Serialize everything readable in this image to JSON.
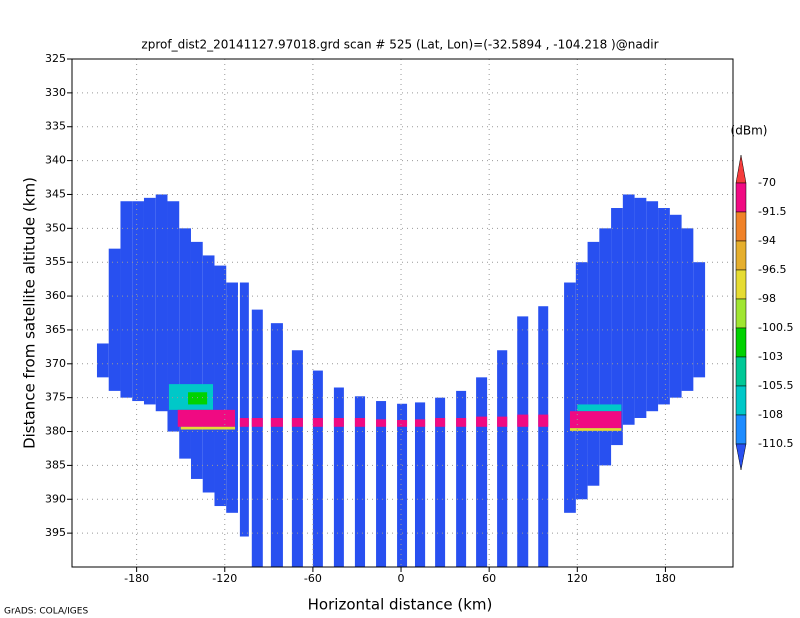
{
  "chart_data": {
    "type": "heatmap",
    "title": "zprof_dist2_20141127.97018.grd  scan # 525  (Lat, Lon)=(-32.5894 , -104.218 )@nadir",
    "x_label": "Horizontal distance (km)",
    "y_label": "Distance from satellite altitude (km)",
    "colorbar_label": "(dBm)",
    "footer": "GrADS: COLA/IGES",
    "xlim": [
      -224,
      226
    ],
    "ylim": [
      325,
      400
    ],
    "y_inverted": true,
    "grid": true,
    "xticks": [
      -180,
      -120,
      -60,
      0,
      60,
      120,
      180
    ],
    "yticks": [
      325,
      330,
      335,
      340,
      345,
      350,
      355,
      360,
      365,
      370,
      375,
      380,
      385,
      390,
      395
    ],
    "levels": [
      -70,
      -91.5,
      -94,
      -96.5,
      -98,
      -100.5,
      -103,
      -105.5,
      -108,
      -110.5
    ],
    "colors": [
      "#f53c3c",
      "#f00a82",
      "#f08228",
      "#e6af2d",
      "#e6dc32",
      "#a0e632",
      "#00d200",
      "#00c896",
      "#00c8c8",
      "#1e8cff",
      "#2850f0"
    ],
    "cells": [
      [
        -207,
        -199,
        367,
        372,
        -112
      ],
      [
        -199,
        -191,
        353,
        374,
        -112
      ],
      [
        -191,
        -183,
        346,
        375,
        -112
      ],
      [
        -183,
        -175,
        346,
        375.5,
        -112
      ],
      [
        -175,
        -167,
        345.5,
        376,
        -112
      ],
      [
        -167,
        -159,
        345,
        377,
        -112
      ],
      [
        -159,
        -151,
        346,
        380,
        -112
      ],
      [
        -151,
        -143,
        350,
        384,
        -112
      ],
      [
        -143,
        -135,
        352,
        387,
        -112
      ],
      [
        -135,
        -127,
        354,
        389,
        -112
      ],
      [
        -127,
        -119,
        355.5,
        391,
        -112
      ],
      [
        -119,
        -111,
        358,
        392,
        -112
      ],
      [
        -109.7,
        -103.6,
        358,
        395.5,
        -112
      ],
      [
        -101.6,
        -94.1,
        362,
        400,
        -112
      ],
      [
        -88.6,
        -80.4,
        364,
        400,
        -112
      ],
      [
        -74.3,
        -66.8,
        368,
        400,
        -112
      ],
      [
        -60,
        -53.2,
        371,
        400,
        -112
      ],
      [
        -45.7,
        -38.9,
        373.5,
        400,
        -112
      ],
      [
        -31.4,
        -24.5,
        374.8,
        400,
        -112
      ],
      [
        -17,
        -10.2,
        375.5,
        400,
        -112
      ],
      [
        -2.7,
        4.1,
        375.9,
        400,
        -112
      ],
      [
        9.5,
        16.4,
        375.7,
        400,
        -112
      ],
      [
        23.2,
        30,
        375,
        400,
        -112
      ],
      [
        37.5,
        44.3,
        374,
        400,
        -112
      ],
      [
        51.1,
        58.6,
        372,
        400,
        -112
      ],
      [
        65.4,
        72.3,
        368,
        400,
        -112
      ],
      [
        79.1,
        86.6,
        363,
        400,
        -112
      ],
      [
        93.4,
        100.2,
        361.5,
        400,
        -112
      ],
      [
        111,
        119,
        358,
        392,
        -112
      ],
      [
        119,
        127,
        355,
        390,
        -112
      ],
      [
        127,
        135,
        352,
        388,
        -112
      ],
      [
        135,
        143,
        350,
        385,
        -112
      ],
      [
        143,
        151,
        347,
        382,
        -112
      ],
      [
        151,
        159,
        345,
        379,
        -112
      ],
      [
        159,
        167,
        345.5,
        378,
        -112
      ],
      [
        167,
        175,
        346,
        377,
        -112
      ],
      [
        175,
        183,
        347,
        376,
        -112
      ],
      [
        183,
        191,
        348,
        375,
        -112
      ],
      [
        191,
        199,
        350,
        374,
        -112
      ],
      [
        199,
        207,
        355,
        372,
        -112
      ],
      [
        -158,
        -128,
        373,
        376.8,
        -107
      ],
      [
        -145,
        -132,
        374.2,
        376,
        -102
      ],
      [
        -152,
        -113,
        376.8,
        379.3,
        -80
      ],
      [
        -150,
        -113,
        379.3,
        379.7,
        -97
      ],
      [
        120,
        150,
        376,
        377,
        -107
      ],
      [
        115,
        150,
        377,
        379.5,
        -80
      ],
      [
        115,
        150,
        379.5,
        379.9,
        -97
      ],
      [
        -109.7,
        -103.6,
        378,
        379.3,
        -85
      ],
      [
        -101.6,
        -94.1,
        378,
        379.3,
        -85
      ],
      [
        -88.6,
        -80.4,
        378,
        379.3,
        -85
      ],
      [
        -74.3,
        -66.8,
        378,
        379.3,
        -85
      ],
      [
        -60,
        -53.2,
        378,
        379.3,
        -85
      ],
      [
        -45.7,
        -38.9,
        378,
        379.3,
        -85
      ],
      [
        -31.4,
        -24.5,
        378,
        379.3,
        -85
      ],
      [
        -17,
        -10.2,
        378.2,
        379.3,
        -85
      ],
      [
        -2.7,
        4.1,
        378.3,
        379.3,
        -85
      ],
      [
        9.5,
        16.4,
        378.2,
        379.3,
        -85
      ],
      [
        23.2,
        30,
        378,
        379.3,
        -85
      ],
      [
        37.5,
        44.3,
        378,
        379.3,
        -85
      ],
      [
        51.1,
        58.6,
        377.8,
        379.3,
        -85
      ],
      [
        65.4,
        72.3,
        377.8,
        379.3,
        -85
      ],
      [
        79.1,
        86.6,
        377.5,
        379.3,
        -85
      ],
      [
        93.4,
        100.2,
        377.5,
        379.3,
        -85
      ]
    ]
  }
}
